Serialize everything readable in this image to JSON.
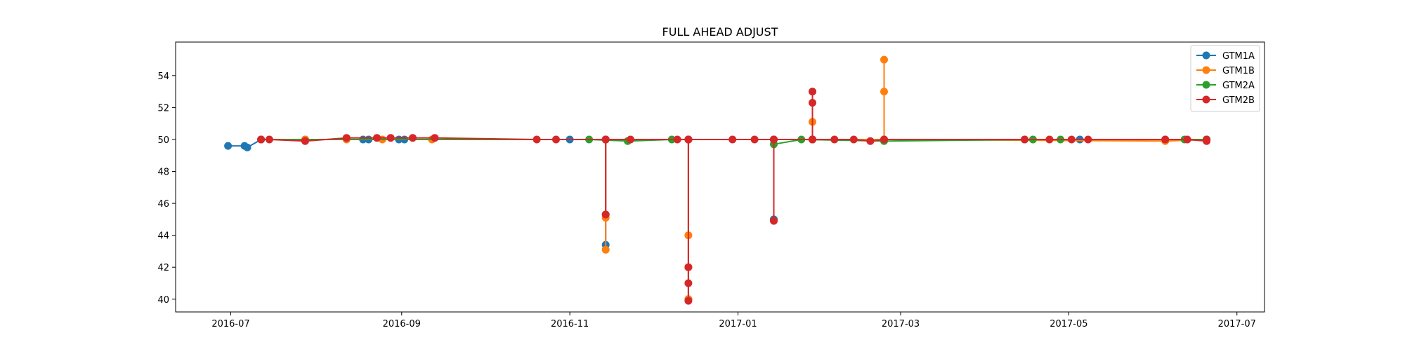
{
  "chart_data": {
    "type": "line",
    "title": "FULL AHEAD ADJUST",
    "xlabel": "",
    "ylabel": "",
    "x_type": "date",
    "xlim": [
      "2016-06-11",
      "2017-07-11"
    ],
    "ylim": [
      39.2,
      56.1
    ],
    "x_ticks": [
      "2016-07",
      "2016-09",
      "2016-11",
      "2017-01",
      "2017-03",
      "2017-05",
      "2017-07"
    ],
    "y_ticks": [
      40,
      42,
      44,
      46,
      48,
      50,
      52,
      54
    ],
    "grid": false,
    "legend_position": "top-right",
    "series": [
      {
        "name": "GTM1A",
        "color": "#1f77b4",
        "points": [
          [
            "2016-06-30",
            49.6
          ],
          [
            "2016-07-06",
            49.6
          ],
          [
            "2016-07-07",
            49.5
          ],
          [
            "2016-07-12",
            50.0
          ],
          [
            "2016-07-28",
            50.0
          ],
          [
            "2016-08-18",
            50.0
          ],
          [
            "2016-08-20",
            50.0
          ],
          [
            "2016-08-31",
            50.0
          ],
          [
            "2016-09-02",
            50.0
          ],
          [
            "2016-11-01",
            50.0
          ],
          [
            "2016-11-14",
            50.0
          ],
          [
            "2016-11-14",
            43.4
          ],
          [
            "2016-11-14",
            45.3
          ],
          [
            "2016-11-14",
            50.0
          ],
          [
            "2016-12-14",
            50.0
          ],
          [
            "2016-12-14",
            40.0
          ],
          [
            "2016-12-14",
            50.0
          ],
          [
            "2017-01-14",
            50.0
          ],
          [
            "2017-01-14",
            45.0
          ],
          [
            "2017-01-14",
            50.0
          ],
          [
            "2017-01-28",
            50.0
          ],
          [
            "2017-01-28",
            53.0
          ],
          [
            "2017-01-28",
            50.0
          ],
          [
            "2017-02-23",
            50.0
          ],
          [
            "2017-04-15",
            50.0
          ],
          [
            "2017-05-05",
            50.0
          ],
          [
            "2017-06-05",
            50.0
          ],
          [
            "2017-06-20",
            50.0
          ]
        ]
      },
      {
        "name": "GTM1B",
        "color": "#ff7f0e",
        "points": [
          [
            "2016-07-12",
            50.0
          ],
          [
            "2016-07-28",
            50.0
          ],
          [
            "2016-08-12",
            50.0
          ],
          [
            "2016-08-25",
            50.0
          ],
          [
            "2016-09-12",
            50.0
          ],
          [
            "2016-11-14",
            50.0
          ],
          [
            "2016-11-14",
            45.1
          ],
          [
            "2016-11-14",
            43.1
          ],
          [
            "2016-11-14",
            50.0
          ],
          [
            "2016-12-14",
            50.0
          ],
          [
            "2016-12-14",
            44.0
          ],
          [
            "2016-12-14",
            42.0
          ],
          [
            "2016-12-14",
            40.0
          ],
          [
            "2016-12-14",
            50.0
          ],
          [
            "2017-01-28",
            50.0
          ],
          [
            "2017-01-28",
            51.1
          ],
          [
            "2017-01-28",
            50.0
          ],
          [
            "2017-02-23",
            50.0
          ],
          [
            "2017-02-23",
            53.0
          ],
          [
            "2017-02-23",
            55.0
          ],
          [
            "2017-02-23",
            50.0
          ],
          [
            "2017-06-05",
            49.9
          ],
          [
            "2017-06-20",
            50.0
          ]
        ]
      },
      {
        "name": "GTM2A",
        "color": "#2ca02c",
        "points": [
          [
            "2016-07-12",
            50.0
          ],
          [
            "2016-11-08",
            50.0
          ],
          [
            "2016-11-22",
            49.9
          ],
          [
            "2016-12-08",
            50.0
          ],
          [
            "2016-12-14",
            50.0
          ],
          [
            "2017-01-14",
            50.0
          ],
          [
            "2017-01-14",
            49.7
          ],
          [
            "2017-01-24",
            50.0
          ],
          [
            "2017-02-23",
            49.9
          ],
          [
            "2017-04-18",
            50.0
          ],
          [
            "2017-04-28",
            50.0
          ],
          [
            "2017-06-12",
            50.0
          ],
          [
            "2017-06-20",
            50.0
          ]
        ]
      },
      {
        "name": "GTM2B",
        "color": "#d62728",
        "points": [
          [
            "2016-07-12",
            50.0
          ],
          [
            "2016-07-15",
            50.0
          ],
          [
            "2016-07-28",
            49.9
          ],
          [
            "2016-08-12",
            50.1
          ],
          [
            "2016-08-23",
            50.1
          ],
          [
            "2016-08-28",
            50.1
          ],
          [
            "2016-09-05",
            50.1
          ],
          [
            "2016-09-13",
            50.1
          ],
          [
            "2016-10-20",
            50.0
          ],
          [
            "2016-10-27",
            50.0
          ],
          [
            "2016-11-14",
            50.0
          ],
          [
            "2016-11-14",
            45.3
          ],
          [
            "2016-11-14",
            50.0
          ],
          [
            "2016-11-23",
            50.0
          ],
          [
            "2016-12-10",
            50.0
          ],
          [
            "2016-12-14",
            50.0
          ],
          [
            "2016-12-14",
            42.0
          ],
          [
            "2016-12-14",
            41.0
          ],
          [
            "2016-12-14",
            39.9
          ],
          [
            "2016-12-14",
            50.0
          ],
          [
            "2016-12-30",
            50.0
          ],
          [
            "2017-01-07",
            50.0
          ],
          [
            "2017-01-14",
            50.0
          ],
          [
            "2017-01-14",
            44.9
          ],
          [
            "2017-01-14",
            50.0
          ],
          [
            "2017-01-28",
            50.0
          ],
          [
            "2017-01-28",
            52.3
          ],
          [
            "2017-01-28",
            53.0
          ],
          [
            "2017-01-28",
            50.0
          ],
          [
            "2017-02-05",
            50.0
          ],
          [
            "2017-02-12",
            50.0
          ],
          [
            "2017-02-18",
            49.9
          ],
          [
            "2017-02-23",
            50.0
          ],
          [
            "2017-04-15",
            50.0
          ],
          [
            "2017-04-24",
            50.0
          ],
          [
            "2017-05-02",
            50.0
          ],
          [
            "2017-05-08",
            50.0
          ],
          [
            "2017-06-05",
            50.0
          ],
          [
            "2017-06-13",
            50.0
          ],
          [
            "2017-06-20",
            49.9
          ],
          [
            "2017-06-20",
            50.0
          ]
        ]
      }
    ]
  }
}
